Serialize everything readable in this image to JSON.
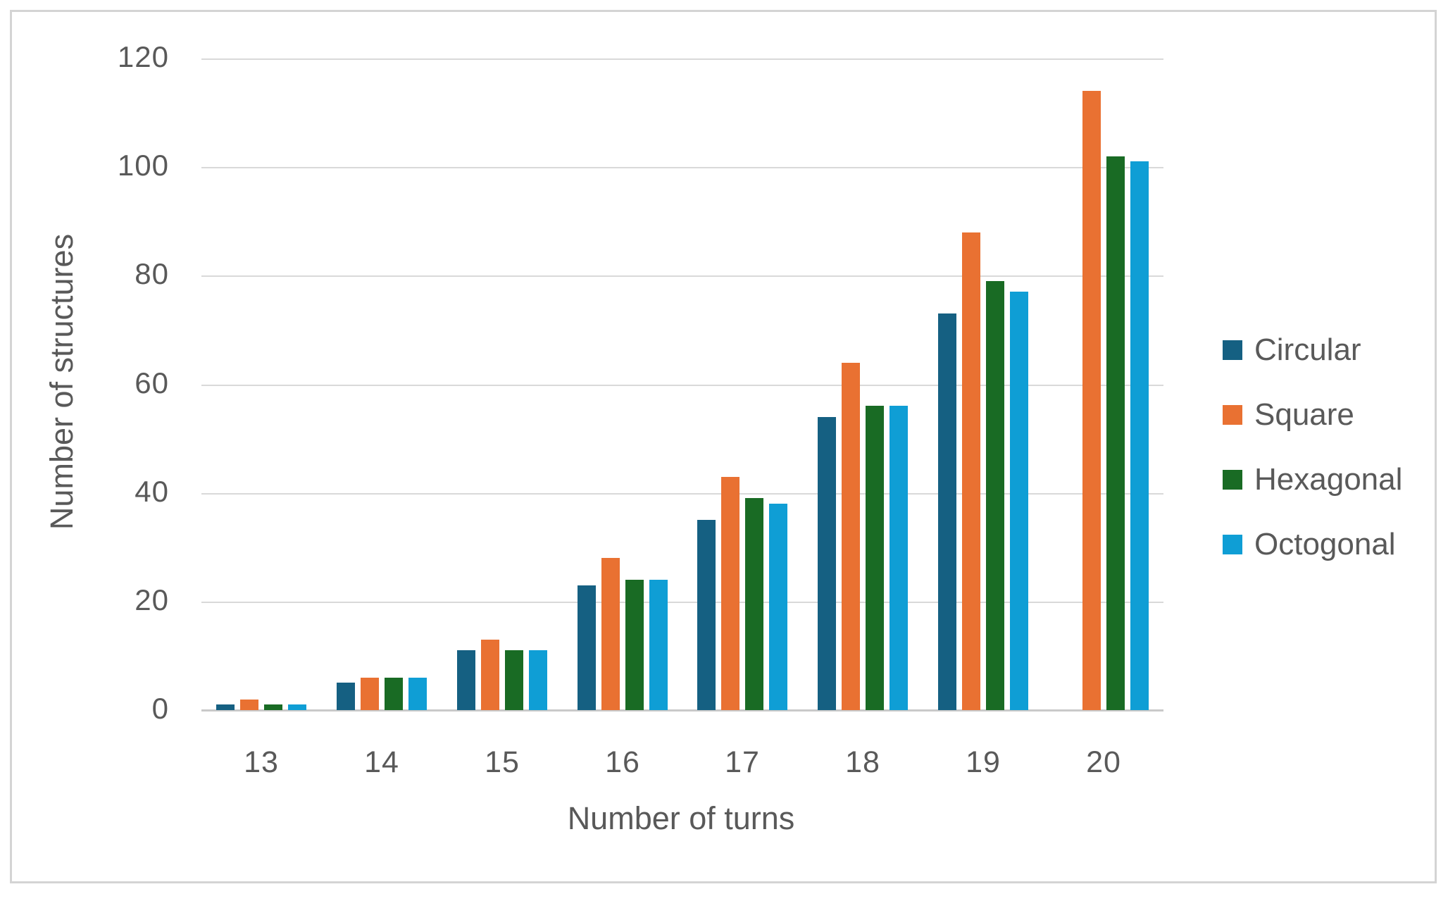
{
  "figure": {
    "background": "#ffffff",
    "border_color": "#d4d4d4"
  },
  "palette": {
    "gridline": "#d9d9d9",
    "axis_line": "#c9c9c9",
    "axis_text": "#595959"
  },
  "chart_data": {
    "type": "bar",
    "title": "",
    "categories": [
      "13",
      "14",
      "15",
      "16",
      "17",
      "18",
      "19",
      "20"
    ],
    "series": [
      {
        "name": "Circular",
        "color": "#156082",
        "values": [
          1,
          5,
          11,
          23,
          35,
          54,
          73,
          0
        ]
      },
      {
        "name": "Square",
        "color": "#E97132",
        "values": [
          2,
          6,
          13,
          28,
          43,
          64,
          88,
          114
        ]
      },
      {
        "name": "Hexagonal",
        "color": "#196B24",
        "values": [
          1,
          6,
          11,
          24,
          39,
          56,
          79,
          102
        ]
      },
      {
        "name": "Octogonal",
        "color": "#0F9ED5",
        "values": [
          1,
          6,
          11,
          24,
          38,
          56,
          77,
          101
        ]
      }
    ],
    "xlabel": "Number of turns",
    "ylabel": "Number of structures",
    "ylim": [
      0,
      120
    ],
    "yticks": [
      0,
      20,
      40,
      60,
      80,
      100,
      120
    ],
    "grid": true,
    "legend_position": "right",
    "missing_bars": [
      {
        "series": "Circular",
        "category": "20"
      }
    ]
  }
}
